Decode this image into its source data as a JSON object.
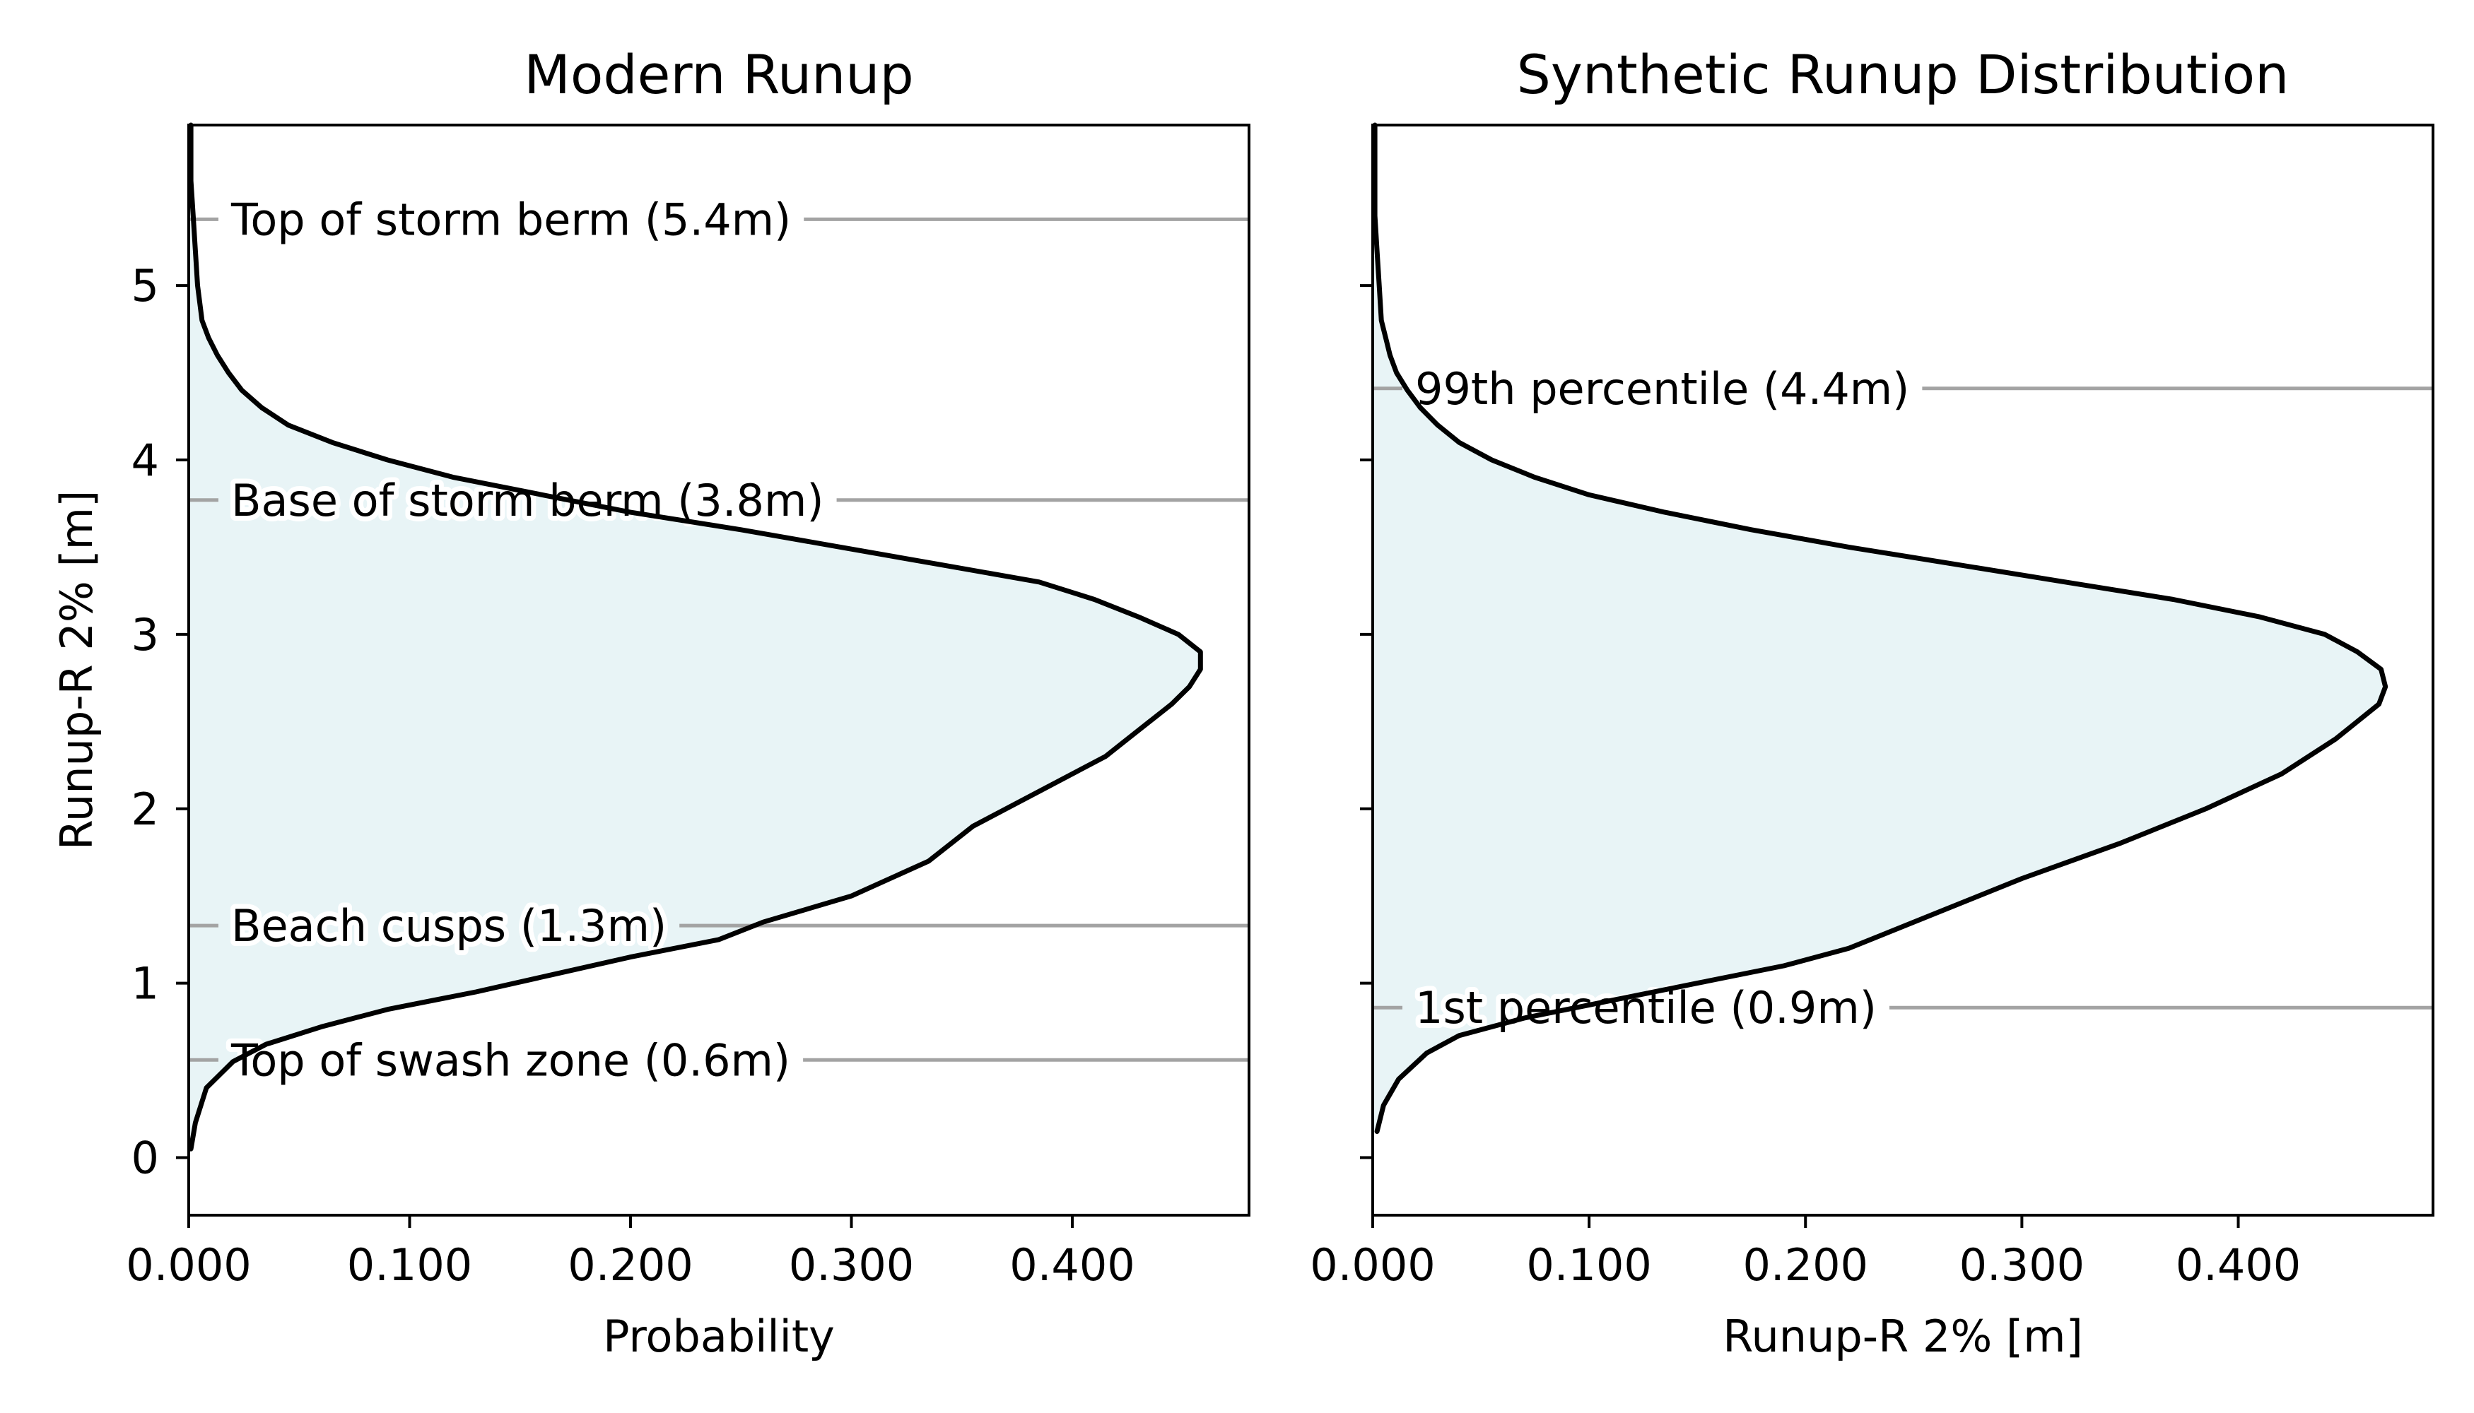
{
  "chart_data": [
    {
      "type": "area",
      "title": "Modern Runup",
      "xlabel": "Probability",
      "ylabel": "Runup-R 2% [m]",
      "xlim": [
        0,
        0.48
      ],
      "ylim": [
        -0.33,
        5.92
      ],
      "xticks": [
        "0.000",
        "0.100",
        "0.200",
        "0.300",
        "0.400"
      ],
      "yticks": [
        "0",
        "1",
        "2",
        "3",
        "4",
        "5"
      ],
      "fill_color": "#e8f4f6",
      "line_color": "#000000",
      "annotation_line_color": "#a3a3a3",
      "curve": {
        "y": [
          0.05,
          0.2,
          0.4,
          0.55,
          0.65,
          0.75,
          0.85,
          0.95,
          1.05,
          1.15,
          1.25,
          1.35,
          1.5,
          1.7,
          1.9,
          2.1,
          2.3,
          2.4,
          2.5,
          2.6,
          2.7,
          2.8,
          2.9,
          3.0,
          3.1,
          3.2,
          3.3,
          3.4,
          3.5,
          3.6,
          3.7,
          3.8,
          3.9,
          4.0,
          4.1,
          4.2,
          4.3,
          4.4,
          4.5,
          4.6,
          4.7,
          4.8,
          5.0,
          5.2,
          5.4,
          5.6,
          5.8,
          5.92
        ],
        "x": [
          0.001,
          0.003,
          0.008,
          0.02,
          0.035,
          0.06,
          0.09,
          0.13,
          0.165,
          0.2,
          0.24,
          0.26,
          0.3,
          0.335,
          0.355,
          0.385,
          0.415,
          0.425,
          0.435,
          0.445,
          0.453,
          0.458,
          0.458,
          0.448,
          0.43,
          0.41,
          0.385,
          0.34,
          0.295,
          0.25,
          0.2,
          0.16,
          0.12,
          0.09,
          0.065,
          0.045,
          0.033,
          0.024,
          0.018,
          0.013,
          0.009,
          0.006,
          0.004,
          0.003,
          0.002,
          0.001,
          0.001,
          0.001
        ]
      },
      "annotations": [
        {
          "label": "Top of storm berm (5.4m)",
          "y": 5.38
        },
        {
          "label": "Base of storm berm (3.8m)",
          "y": 3.77
        },
        {
          "label": "Beach cusps (1.3m)",
          "y": 1.33
        },
        {
          "label": "Top of swash zone (0.6m)",
          "y": 0.56
        }
      ]
    },
    {
      "type": "area",
      "title": "Synthetic Runup Distribution",
      "xlabel": "Runup-R 2% [m]",
      "ylabel": "",
      "xlim": [
        0,
        0.49
      ],
      "ylim": [
        -0.33,
        5.92
      ],
      "xticks": [
        "0.000",
        "0.100",
        "0.200",
        "0.300",
        "0.400"
      ],
      "yticks": [],
      "fill_color": "#e8f4f6",
      "line_color": "#000000",
      "annotation_line_color": "#a3a3a3",
      "curve": {
        "y": [
          0.15,
          0.3,
          0.45,
          0.6,
          0.7,
          0.8,
          0.9,
          1.0,
          1.1,
          1.2,
          1.4,
          1.6,
          1.8,
          2.0,
          2.2,
          2.4,
          2.5,
          2.6,
          2.7,
          2.8,
          2.9,
          3.0,
          3.1,
          3.2,
          3.3,
          3.4,
          3.5,
          3.6,
          3.7,
          3.8,
          3.9,
          4.0,
          4.1,
          4.2,
          4.3,
          4.4,
          4.5,
          4.6,
          4.7,
          4.8,
          5.0,
          5.2,
          5.4,
          5.6,
          5.8,
          5.92
        ],
        "x": [
          0.002,
          0.005,
          0.012,
          0.025,
          0.04,
          0.07,
          0.11,
          0.15,
          0.19,
          0.22,
          0.26,
          0.3,
          0.345,
          0.385,
          0.42,
          0.445,
          0.455,
          0.465,
          0.468,
          0.466,
          0.455,
          0.44,
          0.41,
          0.37,
          0.32,
          0.27,
          0.22,
          0.175,
          0.135,
          0.1,
          0.075,
          0.055,
          0.04,
          0.03,
          0.022,
          0.016,
          0.011,
          0.008,
          0.006,
          0.004,
          0.003,
          0.002,
          0.001,
          0.001,
          0.001,
          0.001
        ]
      },
      "annotations": [
        {
          "label": "99th percentile (4.4m)",
          "y": 4.41
        },
        {
          "label": "1st percentile (0.9m)",
          "y": 0.86
        }
      ]
    }
  ]
}
